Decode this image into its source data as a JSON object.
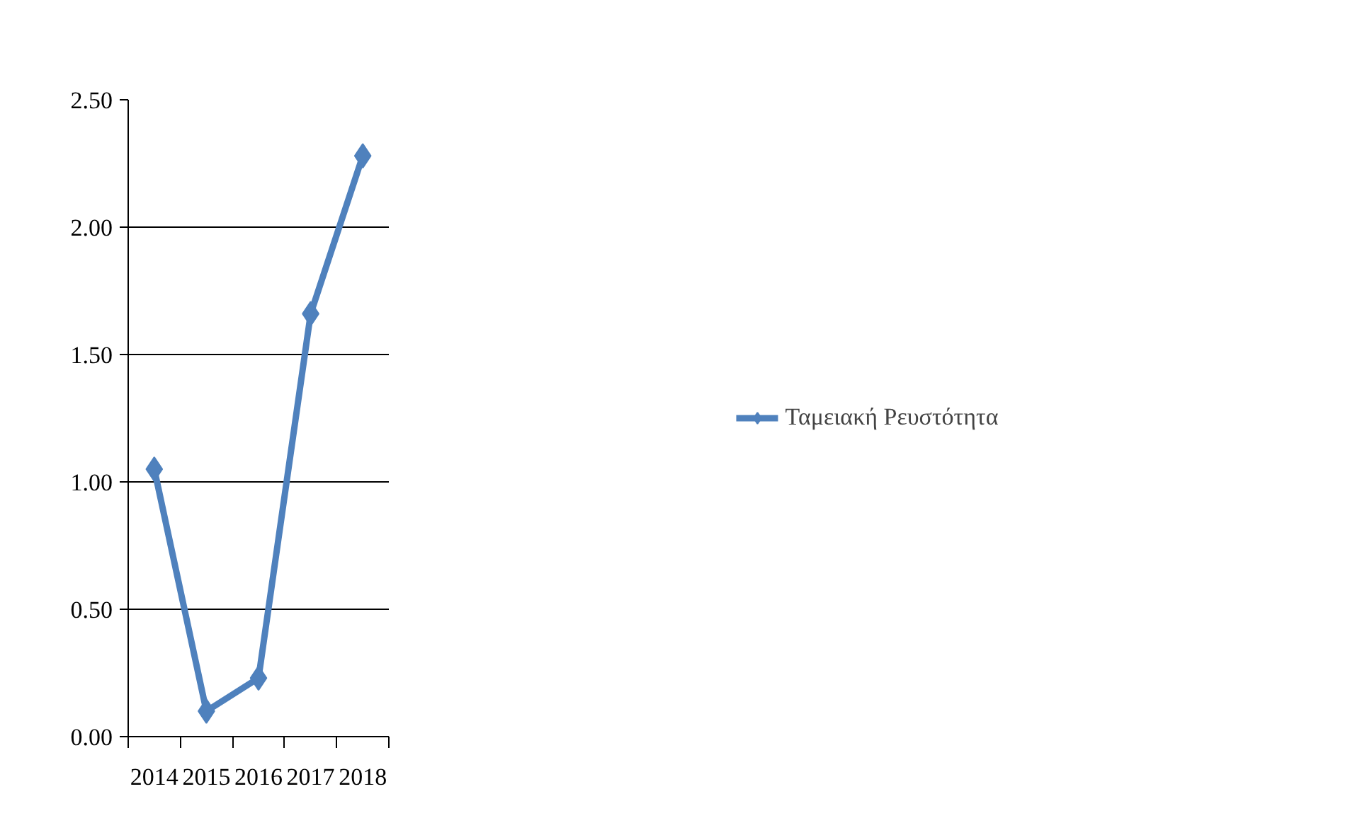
{
  "chart_data": {
    "type": "line",
    "categories": [
      "2014",
      "2015",
      "2016",
      "2017",
      "2018"
    ],
    "series": [
      {
        "name": "Ταμειακή Ρευστότητα",
        "color": "#4f81bd",
        "values": [
          1.05,
          0.1,
          0.23,
          1.66,
          2.28
        ]
      }
    ],
    "ylim": [
      0,
      2.5
    ],
    "yticks": [
      {
        "value": 0,
        "label": "0.00"
      },
      {
        "value": 0.5,
        "label": "0.50"
      },
      {
        "value": 1,
        "label": "1.00"
      },
      {
        "value": 1.5,
        "label": "1.50"
      },
      {
        "value": 2,
        "label": "2.00"
      },
      {
        "value": 2.5,
        "label": "2.50"
      }
    ],
    "grid": "y",
    "legend": "right",
    "marker": "diamond",
    "line_style": "solid"
  }
}
